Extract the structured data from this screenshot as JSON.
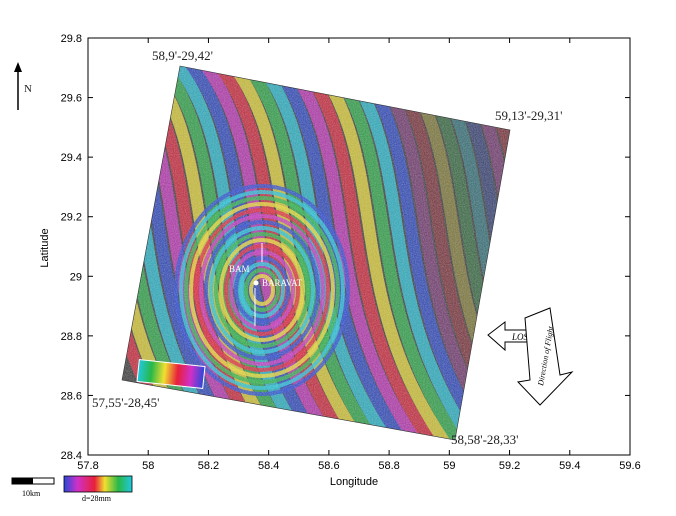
{
  "axes": {
    "xlabel": "Longitude",
    "ylabel": "Latitude",
    "xlim": [
      57.8,
      59.6
    ],
    "ylim": [
      28.4,
      29.8
    ],
    "xticks": [
      "57.8",
      "58",
      "58.2",
      "58.4",
      "58.6",
      "58.8",
      "59",
      "59.2",
      "59.4",
      "59.6"
    ],
    "yticks": [
      "29.8",
      "29.6",
      "29.4",
      "29.2",
      "29",
      "28.8",
      "28.6",
      "28.4"
    ]
  },
  "north_label": "N",
  "corners": {
    "top_left": "58,9'-29,42'",
    "top_right": "59,13'-29,31'",
    "bottom_left": "57,55'-28,45'",
    "bottom_right": "58,58'-28,33'"
  },
  "places": {
    "bam": "BAM",
    "baravat": "BARAVAT"
  },
  "look": {
    "los": "LOS",
    "flight": "Direction of Flight"
  },
  "scale_label": "10km",
  "colorbar_label": "d=28mm",
  "colors": {
    "fringe_red": "#e8203a",
    "fringe_yellow": "#f0e030",
    "fringe_green": "#28b848",
    "fringe_cyan": "#20c8e0",
    "fringe_blue": "#2848d8",
    "fringe_magenta": "#d030c8"
  }
}
